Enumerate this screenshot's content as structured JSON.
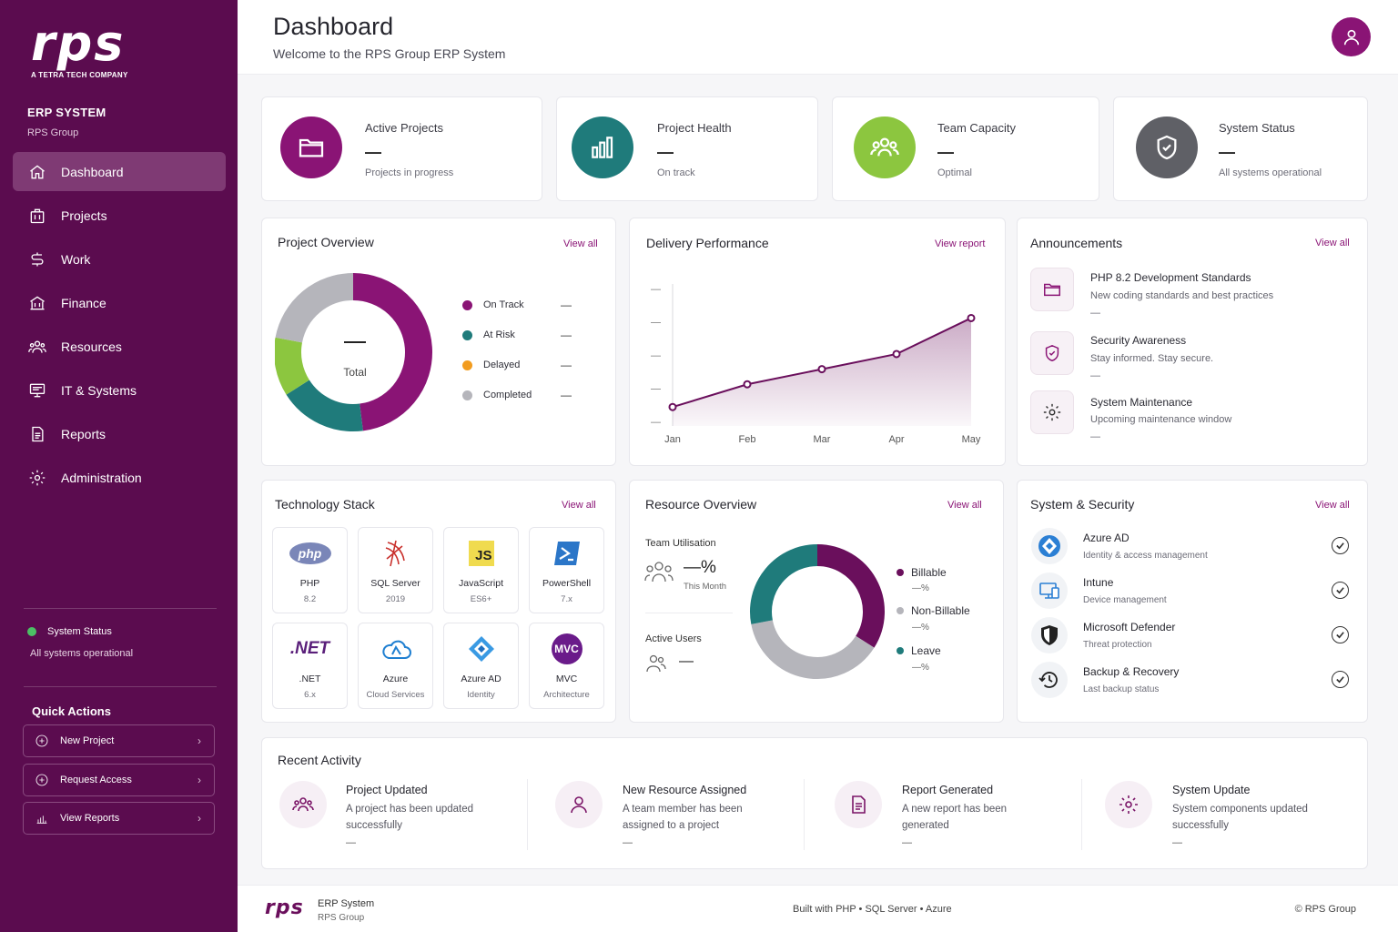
{
  "brand": {
    "logo_text": "rps",
    "tagline": "A TETRA TECH COMPANY"
  },
  "sidebar": {
    "title": "ERP SYSTEM",
    "subtitle": "RPS Group",
    "items": [
      {
        "label": "Dashboard",
        "icon": "home-icon"
      },
      {
        "label": "Projects",
        "icon": "projects-icon"
      },
      {
        "label": "Work",
        "icon": "work-icon"
      },
      {
        "label": "Finance",
        "icon": "finance-icon"
      },
      {
        "label": "Resources",
        "icon": "resources-icon"
      },
      {
        "label": "IT & Systems",
        "icon": "monitor-icon"
      },
      {
        "label": "Reports",
        "icon": "report-icon"
      },
      {
        "label": "Administration",
        "icon": "gear-icon"
      }
    ],
    "status": {
      "label": "System Status",
      "text": "All systems operational",
      "color": "#4cc065"
    },
    "quick_actions": {
      "title": "Quick Actions",
      "items": [
        {
          "label": "New Project",
          "icon": "plus-circle-icon"
        },
        {
          "label": "Request Access",
          "icon": "plus-circle-icon"
        },
        {
          "label": "View Reports",
          "icon": "bar-chart-icon"
        }
      ]
    }
  },
  "header": {
    "title": "Dashboard",
    "subtitle": "Welcome to the RPS Group ERP System"
  },
  "kpis": [
    {
      "label": "Active Projects",
      "value": "—",
      "sub": "Projects in progress",
      "color": "#8a1475",
      "icon": "folder-icon"
    },
    {
      "label": "Project Health",
      "value": "—",
      "sub": "On track",
      "color": "#1f7b7b",
      "icon": "bar-chart-icon"
    },
    {
      "label": "Team Capacity",
      "value": "—",
      "sub": "Optimal",
      "color": "#8cc63f",
      "icon": "team-icon"
    },
    {
      "label": "System Status",
      "value": "—",
      "sub": "All systems operational",
      "color": "#5f6066",
      "icon": "shield-check-icon"
    }
  ],
  "project_overview": {
    "title": "Project Overview",
    "link": "View all",
    "center_value": "—",
    "center_label": "Total",
    "legend": [
      {
        "label": "On Track",
        "value": "—",
        "color": "#8a1475"
      },
      {
        "label": "At Risk",
        "value": "—",
        "color": "#1f7b7b"
      },
      {
        "label": "Delayed",
        "value": "—",
        "color": "#f29c1f"
      },
      {
        "label": "Completed",
        "value": "—",
        "color": "#b5b5bb"
      }
    ]
  },
  "chart_data": [
    {
      "type": "pie",
      "title": "Project Overview",
      "categories": [
        "On Track",
        "At Risk",
        "Delayed",
        "Completed"
      ],
      "values": [
        48,
        18,
        12,
        22
      ],
      "slice_colors": [
        "#8a1475",
        "#1f7b7b",
        "#8cc63f",
        "#b5b5bb"
      ]
    },
    {
      "type": "area",
      "title": "Delivery Performance",
      "categories": [
        "Jan",
        "Feb",
        "Mar",
        "Apr",
        "May"
      ],
      "values": [
        10,
        22,
        30,
        38,
        57
      ],
      "ylim": [
        0,
        75
      ],
      "y_tick_labels": [
        "—",
        "—",
        "—",
        "—",
        "—"
      ],
      "color": "#6a0f5c"
    },
    {
      "type": "pie",
      "title": "Resource Overview",
      "categories": [
        "Billable",
        "Non-Billable",
        "Leave"
      ],
      "values": [
        34,
        38,
        28
      ],
      "slice_colors": [
        "#6a0f5c",
        "#b5b5bb",
        "#1f7b7b"
      ]
    }
  ],
  "delivery": {
    "title": "Delivery Performance",
    "link": "View report"
  },
  "announcements": {
    "title": "Announcements",
    "link": "View all",
    "items": [
      {
        "title": "PHP 8.2 Development Standards",
        "sub": "New coding standards and best practices",
        "dash": "—",
        "icon": "folder-icon"
      },
      {
        "title": "Security Awareness",
        "sub": "Stay informed. Stay secure.",
        "dash": "—",
        "icon": "shield-icon"
      },
      {
        "title": "System Maintenance",
        "sub": "Upcoming maintenance window",
        "dash": "—",
        "icon": "gear-icon"
      }
    ]
  },
  "tech_stack": {
    "title": "Technology Stack",
    "link": "View all",
    "items": [
      {
        "name": "PHP",
        "version": "8.2",
        "badge": "php",
        "icon": "php-icon"
      },
      {
        "name": "SQL Server",
        "version": "2019",
        "icon": "sql-server-icon"
      },
      {
        "name": "JavaScript",
        "version": "ES6+",
        "badge": "JS",
        "icon": "javascript-icon"
      },
      {
        "name": "PowerShell",
        "version": "7.x",
        "icon": "powershell-icon"
      },
      {
        "name": ".NET",
        "version": "6.x",
        "badge": ".NET",
        "icon": "dotnet-icon"
      },
      {
        "name": "Azure",
        "version": "Cloud Services",
        "icon": "azure-icon"
      },
      {
        "name": "Azure AD",
        "version": "Identity",
        "icon": "azure-ad-icon"
      },
      {
        "name": "MVC",
        "version": "Architecture",
        "badge": "MVC",
        "icon": "mvc-icon"
      }
    ]
  },
  "resource_overview": {
    "title": "Resource Overview",
    "link": "View all",
    "utilisation_label": "Team Utilisation",
    "utilisation_value": "—%",
    "utilisation_period": "This Month",
    "active_users_label": "Active Users",
    "active_users_value": "—",
    "legend": [
      {
        "label": "Billable",
        "value": "—%",
        "color": "#6a0f5c"
      },
      {
        "label": "Non-Billable",
        "value": "—%",
        "color": "#b5b5bb"
      },
      {
        "label": "Leave",
        "value": "—%",
        "color": "#1f7b7b"
      }
    ]
  },
  "security": {
    "title": "System & Security",
    "link": "View all",
    "items": [
      {
        "title": "Azure AD",
        "sub": "Identity & access management",
        "icon": "azure-ad-icon"
      },
      {
        "title": "Intune",
        "sub": "Device management",
        "icon": "intune-icon"
      },
      {
        "title": "Microsoft Defender",
        "sub": "Threat protection",
        "icon": "defender-icon"
      },
      {
        "title": "Backup & Recovery",
        "sub": "Last backup status",
        "icon": "backup-icon"
      }
    ]
  },
  "recent_activity": {
    "title": "Recent Activity",
    "items": [
      {
        "title": "Project Updated",
        "desc": "A project has been updated successfully",
        "dash": "—",
        "icon": "team-icon"
      },
      {
        "title": "New Resource Assigned",
        "desc": "A team member has been assigned to a project",
        "dash": "—",
        "icon": "user-icon"
      },
      {
        "title": "Report Generated",
        "desc": "A new report has been generated",
        "dash": "—",
        "icon": "document-icon"
      },
      {
        "title": "System Update",
        "desc": "System components updated successfully",
        "dash": "—",
        "icon": "gear-icon"
      }
    ]
  },
  "footer": {
    "logo_text": "rps",
    "app": "ERP System",
    "org": "RPS Group",
    "built_with": "Built with PHP • SQL Server • Azure",
    "copyright": "© RPS Group"
  }
}
